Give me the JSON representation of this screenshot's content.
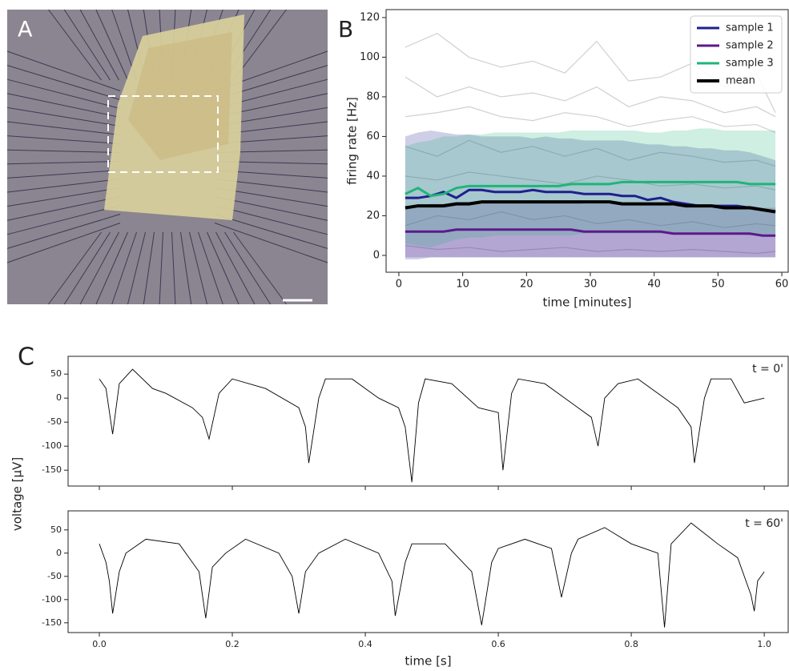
{
  "panel_labels": [
    "A",
    "B",
    "C"
  ],
  "chart_data": [
    {
      "type": "line",
      "xlabel": "time [minutes]",
      "ylabel": "firing rate [Hz]",
      "xlim": [
        -2,
        61
      ],
      "ylim": [
        -8.5,
        124
      ],
      "xticks": [
        0,
        10,
        20,
        30,
        40,
        50,
        60
      ],
      "yticks": [
        0,
        20,
        40,
        60,
        80,
        100,
        120
      ],
      "legend": "upper right",
      "x": [
        1,
        3,
        5,
        7,
        9,
        11,
        13,
        15,
        17,
        19,
        21,
        23,
        25,
        27,
        29,
        31,
        33,
        35,
        37,
        39,
        41,
        43,
        45,
        47,
        49,
        51,
        53,
        55,
        57,
        59
      ],
      "series": [
        {
          "name": "sample 1",
          "color": "#1f1f8f",
          "values": [
            29,
            29,
            30,
            32,
            29,
            33,
            33,
            32,
            32,
            32,
            33,
            32,
            32,
            32,
            31,
            31,
            31,
            30,
            30,
            28,
            29,
            27,
            26,
            25,
            25,
            25,
            25,
            24,
            23,
            22
          ],
          "band_lower": [
            -2,
            -2,
            -1,
            -1,
            -1,
            -1,
            -1,
            -1,
            -1,
            -1,
            -1,
            -1,
            -1,
            -1,
            -1,
            -1,
            -1,
            -1,
            -1,
            -1,
            -1,
            -1,
            -1,
            -1,
            -1,
            -1,
            -1,
            -1,
            -1,
            -1
          ],
          "band_upper": [
            60,
            62,
            63,
            62,
            61,
            61,
            60,
            60,
            60,
            60,
            59,
            60,
            59,
            59,
            58,
            58,
            58,
            58,
            57,
            56,
            56,
            55,
            55,
            54,
            54,
            53,
            53,
            52,
            50,
            48
          ]
        },
        {
          "name": "sample 2",
          "color": "#5c1a8c",
          "values": [
            12,
            12,
            12,
            12,
            13,
            13,
            13,
            13,
            13,
            13,
            13,
            13,
            13,
            13,
            12,
            12,
            12,
            12,
            12,
            12,
            12,
            11,
            11,
            11,
            11,
            11,
            11,
            11,
            10,
            10
          ],
          "band_lower": [
            -1,
            -1,
            -1,
            -1,
            -1,
            -1,
            -1,
            -1,
            -1,
            -1,
            -1,
            -1,
            -1,
            -1,
            -1,
            -1,
            -1,
            -1,
            -1,
            -1,
            -1,
            -1,
            -1,
            -1,
            -1,
            -1,
            -1,
            -1,
            -1,
            -1
          ],
          "band_upper": [
            25,
            25,
            26,
            26,
            27,
            27,
            27,
            27,
            27,
            27,
            27,
            27,
            27,
            27,
            26,
            26,
            26,
            26,
            26,
            26,
            26,
            25,
            25,
            25,
            25,
            25,
            25,
            25,
            24,
            24
          ]
        },
        {
          "name": "sample 3",
          "color": "#1fb57a",
          "values": [
            31,
            34,
            30,
            31,
            34,
            35,
            35,
            35,
            35,
            35,
            35,
            35,
            35,
            36,
            36,
            36,
            36,
            37,
            37,
            37,
            37,
            37,
            37,
            37,
            37,
            37,
            37,
            36,
            36,
            36
          ],
          "band_lower": [
            6,
            5,
            4,
            6,
            8,
            9,
            9,
            10,
            10,
            10,
            10,
            10,
            10,
            10,
            11,
            11,
            11,
            11,
            11,
            11,
            11,
            11,
            11,
            11,
            11,
            11,
            11,
            10,
            10,
            10
          ],
          "band_upper": [
            55,
            57,
            58,
            60,
            60,
            61,
            61,
            62,
            62,
            62,
            62,
            62,
            62,
            63,
            63,
            63,
            63,
            63,
            63,
            62,
            62,
            63,
            63,
            64,
            64,
            63,
            63,
            63,
            63,
            63
          ]
        },
        {
          "name": "mean",
          "color": "#000000",
          "values": [
            24,
            25,
            25,
            25,
            26,
            26,
            27,
            27,
            27,
            27,
            27,
            27,
            27,
            27,
            27,
            27,
            27,
            26,
            26,
            26,
            26,
            26,
            25,
            25,
            25,
            24,
            24,
            24,
            23,
            22
          ]
        }
      ],
      "trace_color": "#aaaaaa",
      "trace_x": [
        1,
        6,
        11,
        16,
        21,
        26,
        31,
        36,
        41,
        46,
        51,
        56,
        59
      ],
      "traces": [
        {
          "values": [
            105,
            112,
            100,
            95,
            98,
            92,
            108,
            88,
            90,
            97,
            85,
            92,
            72
          ]
        },
        {
          "values": [
            90,
            80,
            85,
            80,
            82,
            78,
            85,
            75,
            80,
            78,
            72,
            75,
            70
          ]
        },
        {
          "values": [
            70,
            72,
            75,
            70,
            68,
            72,
            70,
            65,
            68,
            70,
            65,
            66,
            62
          ]
        },
        {
          "values": [
            55,
            50,
            58,
            52,
            55,
            50,
            54,
            48,
            52,
            50,
            47,
            48,
            45
          ]
        },
        {
          "values": [
            40,
            38,
            42,
            40,
            38,
            36,
            40,
            38,
            35,
            36,
            34,
            35,
            33
          ]
        },
        {
          "values": [
            15,
            20,
            18,
            22,
            18,
            20,
            16,
            18,
            15,
            17,
            14,
            16,
            15
          ]
        },
        {
          "values": [
            5,
            3,
            4,
            2,
            3,
            4,
            2,
            3,
            2,
            3,
            2,
            1,
            2
          ]
        }
      ]
    },
    {
      "type": "line",
      "annotation": "t = 0'",
      "ylabel": "voltage [µV]",
      "xlim": [
        -0.047,
        1.036
      ],
      "ylim": [
        -183,
        87
      ],
      "xticks": [
        0,
        0.2,
        0.4,
        0.6,
        0.8,
        1
      ],
      "yticks": [
        50,
        0,
        -50,
        -100,
        -150
      ],
      "color": "#000000",
      "x": [
        0,
        0.01,
        0.02,
        0.03,
        0.05,
        0.08,
        0.1,
        0.14,
        0.155,
        0.165,
        0.18,
        0.2,
        0.25,
        0.3,
        0.31,
        0.315,
        0.33,
        0.34,
        0.38,
        0.42,
        0.45,
        0.46,
        0.47,
        0.48,
        0.49,
        0.53,
        0.57,
        0.6,
        0.607,
        0.62,
        0.63,
        0.67,
        0.72,
        0.74,
        0.75,
        0.76,
        0.78,
        0.81,
        0.87,
        0.89,
        0.895,
        0.91,
        0.92,
        0.95,
        0.97,
        1.0
      ],
      "values": [
        40,
        20,
        -75,
        30,
        60,
        20,
        10,
        -20,
        -40,
        -85,
        10,
        40,
        20,
        -20,
        -60,
        -135,
        0,
        40,
        40,
        0,
        -20,
        -60,
        -175,
        -10,
        40,
        30,
        -20,
        -30,
        -150,
        10,
        40,
        30,
        -20,
        -40,
        -100,
        0,
        30,
        40,
        -20,
        -60,
        -135,
        0,
        40,
        40,
        -10,
        0
      ]
    },
    {
      "type": "line",
      "annotation": "t = 60'",
      "xlabel": "time [s]",
      "xlim": [
        -0.047,
        1.036
      ],
      "ylim": [
        -171,
        91
      ],
      "xticks": [
        {
          "value": 0,
          "label": "0.0"
        },
        0.2,
        0.4,
        0.6,
        0.8,
        {
          "value": 1,
          "label": "1.0"
        }
      ],
      "yticks": [
        50,
        0,
        -50,
        -100,
        -150
      ],
      "color": "#000000",
      "x": [
        0,
        0.01,
        0.015,
        0.02,
        0.03,
        0.04,
        0.07,
        0.12,
        0.15,
        0.16,
        0.17,
        0.19,
        0.22,
        0.27,
        0.29,
        0.3,
        0.31,
        0.33,
        0.37,
        0.42,
        0.44,
        0.445,
        0.46,
        0.47,
        0.52,
        0.56,
        0.575,
        0.59,
        0.6,
        0.64,
        0.68,
        0.695,
        0.71,
        0.72,
        0.76,
        0.8,
        0.84,
        0.85,
        0.86,
        0.89,
        0.93,
        0.96,
        0.98,
        0.985,
        0.99,
        1.0
      ],
      "values": [
        20,
        -20,
        -60,
        -130,
        -40,
        0,
        30,
        20,
        -40,
        -140,
        -30,
        0,
        30,
        0,
        -50,
        -130,
        -40,
        0,
        30,
        0,
        -60,
        -135,
        -20,
        20,
        20,
        -40,
        -155,
        -20,
        10,
        30,
        10,
        -95,
        0,
        30,
        55,
        20,
        0,
        -160,
        20,
        65,
        20,
        -10,
        -90,
        -125,
        -60,
        -40
      ]
    }
  ]
}
